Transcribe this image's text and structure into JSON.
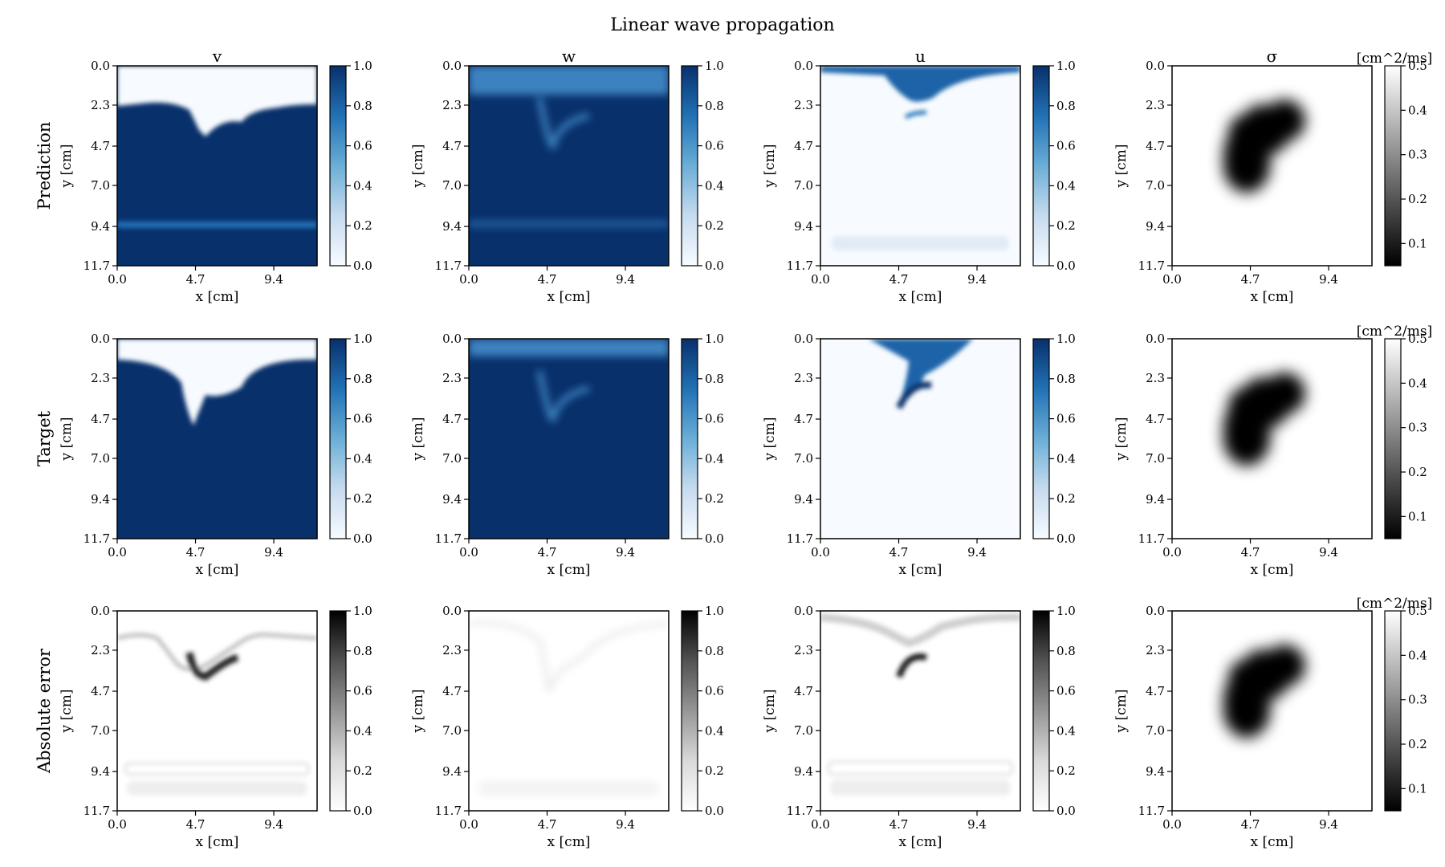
{
  "title": "Linear wave propagation",
  "columns": [
    "v",
    "w",
    "u",
    "σ"
  ],
  "rows": [
    "Prediction",
    "Target",
    "Absolute error"
  ],
  "xlabel": "x [cm]",
  "ylabel": "y [cm]",
  "sigma_unit": "[cm^2/ms]",
  "colors": {
    "blues_dark": "#08306b",
    "blues_light": "#f7fbff",
    "gray_dark": "#000000",
    "gray_light": "#ffffff"
  },
  "chart_data": {
    "type": "heatmap",
    "x_ticks": [
      "0.0",
      "4.7",
      "9.4"
    ],
    "y_ticks": [
      "0.0",
      "2.3",
      "4.7",
      "7.0",
      "9.4",
      "11.7"
    ],
    "x_tick_values": [
      0.0,
      4.7,
      9.4
    ],
    "y_tick_values": [
      0.0,
      2.3,
      4.7,
      7.0,
      9.4,
      11.7
    ],
    "xlim": [
      0,
      12
    ],
    "ylim": [
      11.7,
      0
    ],
    "field_colorbar": {
      "ticks": [
        "0.0",
        "0.2",
        "0.4",
        "0.6",
        "0.8",
        "1.0"
      ],
      "range": [
        0,
        1
      ]
    },
    "sigma_colorbar": {
      "ticks": [
        "0.1",
        "0.2",
        "0.3",
        "0.4",
        "0.5"
      ],
      "range": [
        0.05,
        0.5
      ]
    },
    "colormaps": {
      "prediction": "Blues",
      "target": "Blues",
      "absolute_error": "Greys",
      "sigma": "gray"
    }
  }
}
